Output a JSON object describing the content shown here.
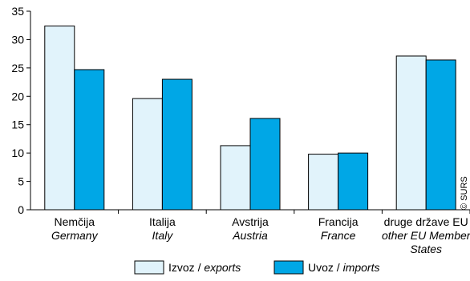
{
  "chart_data": {
    "type": "bar",
    "categories": [
      {
        "sl": "Nemčija",
        "en": "Germany",
        "en2": ""
      },
      {
        "sl": "Italija",
        "en": "Italy",
        "en2": ""
      },
      {
        "sl": "Avstrija",
        "en": "Austria",
        "en2": ""
      },
      {
        "sl": "Francija",
        "en": "France",
        "en2": ""
      },
      {
        "sl": "druge države EU",
        "en": "other EU Member",
        "en2": "States"
      }
    ],
    "series": [
      {
        "name_sl": "Izvoz",
        "name_en": "exports",
        "color": "#e1f3fb",
        "values": [
          32.4,
          19.6,
          11.3,
          9.8,
          27.1
        ]
      },
      {
        "name_sl": "Uvoz",
        "name_en": "imports",
        "color": "#00a7e6",
        "values": [
          24.7,
          23.0,
          16.1,
          10.0,
          26.4
        ]
      }
    ],
    "ylim": [
      0,
      35
    ],
    "yticks": [
      0,
      5,
      10,
      15,
      20,
      25,
      30,
      35
    ],
    "legend_position": "bottom",
    "credit": "© SURS"
  }
}
